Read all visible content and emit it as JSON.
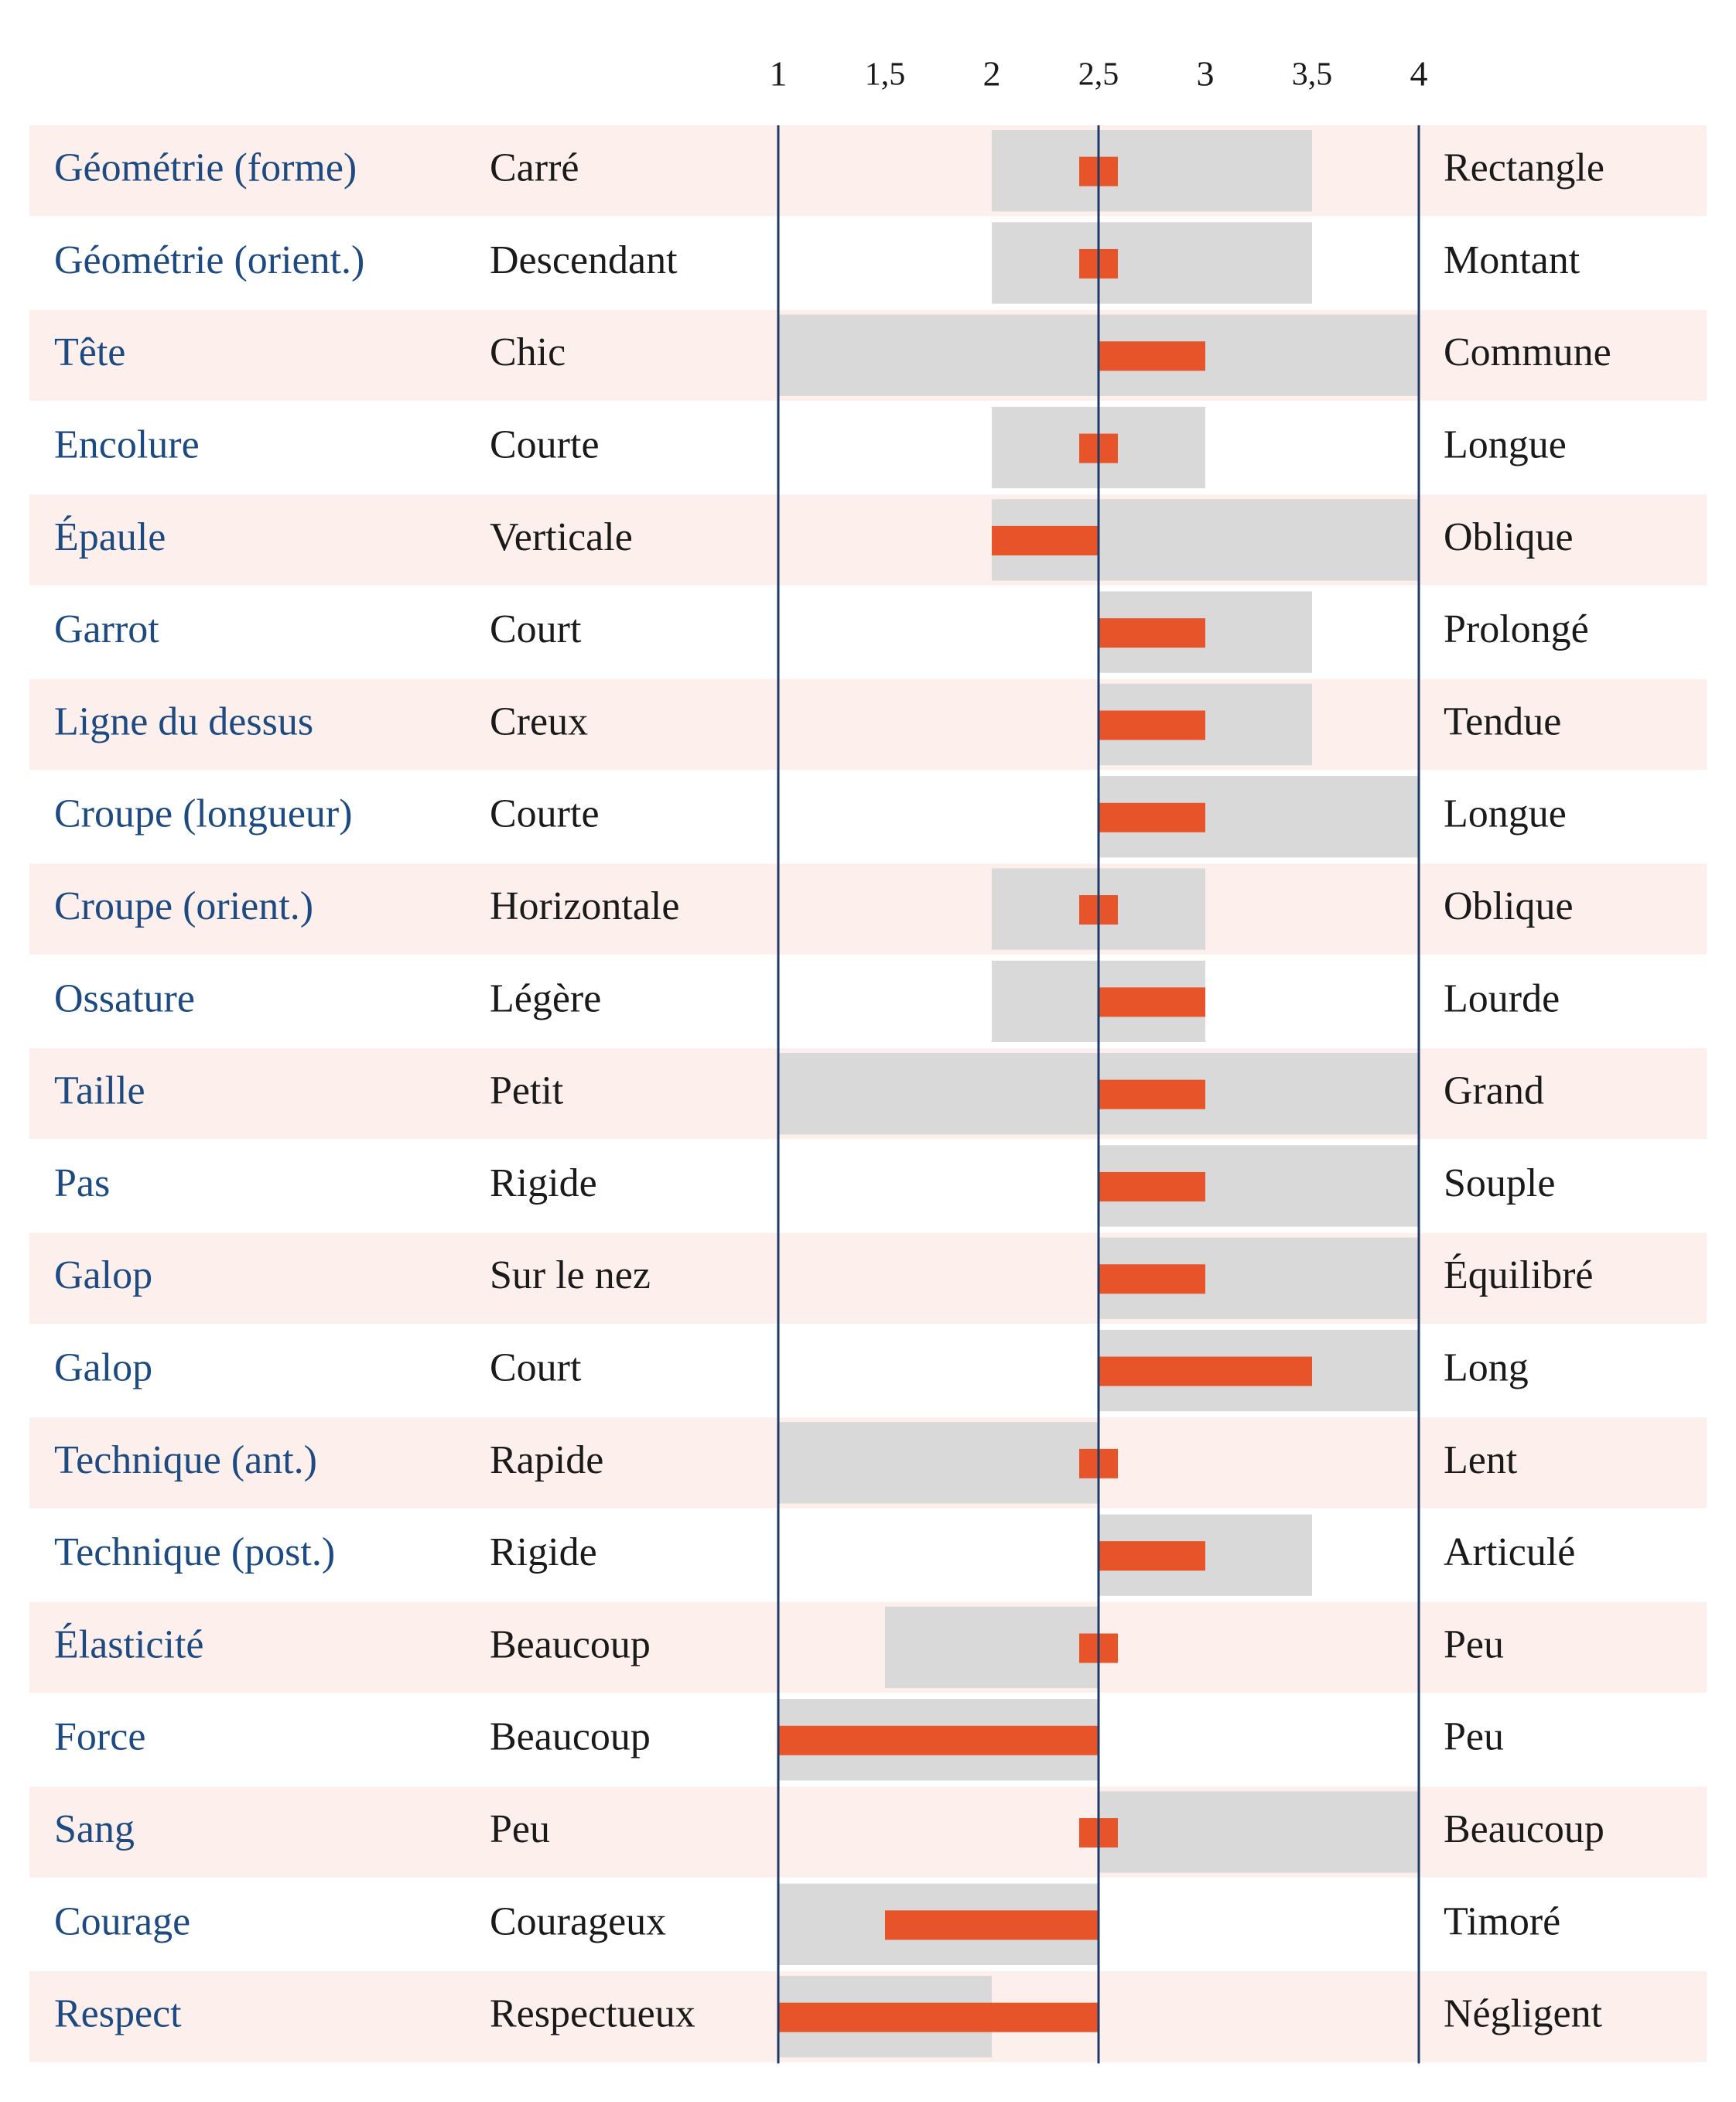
{
  "colors": {
    "label": "#1e4a82",
    "text": "#1a1a1a",
    "row_stripe": "#fcefec",
    "range": "#d9d9d9",
    "bar": "#e8542a",
    "axis": "#1f3a66"
  },
  "chart_data": {
    "type": "bar",
    "title": "",
    "xlabel": "",
    "ylabel": "",
    "xlim": [
      1,
      4
    ],
    "baseline": 2.5,
    "ticks": [
      {
        "value": 1,
        "label": "1"
      },
      {
        "value": 1.5,
        "label": "1,5"
      },
      {
        "value": 2,
        "label": "2"
      },
      {
        "value": 2.5,
        "label": "2,5"
      },
      {
        "value": 3,
        "label": "3"
      },
      {
        "value": 3.5,
        "label": "3,5"
      },
      {
        "value": 4,
        "label": "4"
      }
    ],
    "rows": [
      {
        "label": "Géométrie (forme)",
        "low": "Carré",
        "high": "Rectangle",
        "range": [
          2,
          3.5
        ],
        "value": 2.5
      },
      {
        "label": "Géométrie (orient.)",
        "low": "Descendant",
        "high": "Montant",
        "range": [
          2,
          3.5
        ],
        "value": 2.5
      },
      {
        "label": "Tête",
        "low": "Chic",
        "high": "Commune",
        "range": [
          1,
          4
        ],
        "value": 3
      },
      {
        "label": "Encolure",
        "low": "Courte",
        "high": "Longue",
        "range": [
          2,
          3
        ],
        "value": 2.5
      },
      {
        "label": "Épaule",
        "low": "Verticale",
        "high": "Oblique",
        "range": [
          2,
          4
        ],
        "value": 2
      },
      {
        "label": "Garrot",
        "low": "Court",
        "high": "Prolongé",
        "range": [
          2.5,
          3.5
        ],
        "value": 3
      },
      {
        "label": "Ligne du dessus",
        "low": "Creux",
        "high": "Tendue",
        "range": [
          2.5,
          3.5
        ],
        "value": 3
      },
      {
        "label": "Croupe (longueur)",
        "low": "Courte",
        "high": "Longue",
        "range": [
          2.5,
          4
        ],
        "value": 3
      },
      {
        "label": "Croupe (orient.)",
        "low": "Horizontale",
        "high": "Oblique",
        "range": [
          2,
          3
        ],
        "value": 2.5
      },
      {
        "label": "Ossature",
        "low": "Légère",
        "high": "Lourde",
        "range": [
          2,
          3
        ],
        "value": 3
      },
      {
        "label": "Taille",
        "low": "Petit",
        "high": "Grand",
        "range": [
          1,
          4
        ],
        "value": 3
      },
      {
        "label": "Pas",
        "low": "Rigide",
        "high": "Souple",
        "range": [
          2.5,
          4
        ],
        "value": 3
      },
      {
        "label": "Galop",
        "low": "Sur le nez",
        "high": "Équilibré",
        "range": [
          2.5,
          4
        ],
        "value": 3
      },
      {
        "label": "Galop",
        "low": "Court",
        "high": "Long",
        "range": [
          2.5,
          4
        ],
        "value": 3.5
      },
      {
        "label": "Technique (ant.)",
        "low": "Rapide",
        "high": "Lent",
        "range": [
          1,
          2.5
        ],
        "value": 2.5
      },
      {
        "label": "Technique (post.)",
        "low": "Rigide",
        "high": "Articulé",
        "range": [
          2.5,
          3.5
        ],
        "value": 3
      },
      {
        "label": "Élasticité",
        "low": "Beaucoup",
        "high": "Peu",
        "range": [
          1.5,
          2.5
        ],
        "value": 2.5
      },
      {
        "label": "Force",
        "low": "Beaucoup",
        "high": "Peu",
        "range": [
          1,
          2.5
        ],
        "value": 1
      },
      {
        "label": "Sang",
        "low": "Peu",
        "high": "Beaucoup",
        "range": [
          2.5,
          4
        ],
        "value": 2.5
      },
      {
        "label": "Courage",
        "low": "Courageux",
        "high": "Timoré",
        "range": [
          1,
          2.5
        ],
        "value": 1.5
      },
      {
        "label": "Respect",
        "low": "Respectueux",
        "high": "Négligent",
        "range": [
          1,
          2
        ],
        "value": 1
      }
    ]
  }
}
